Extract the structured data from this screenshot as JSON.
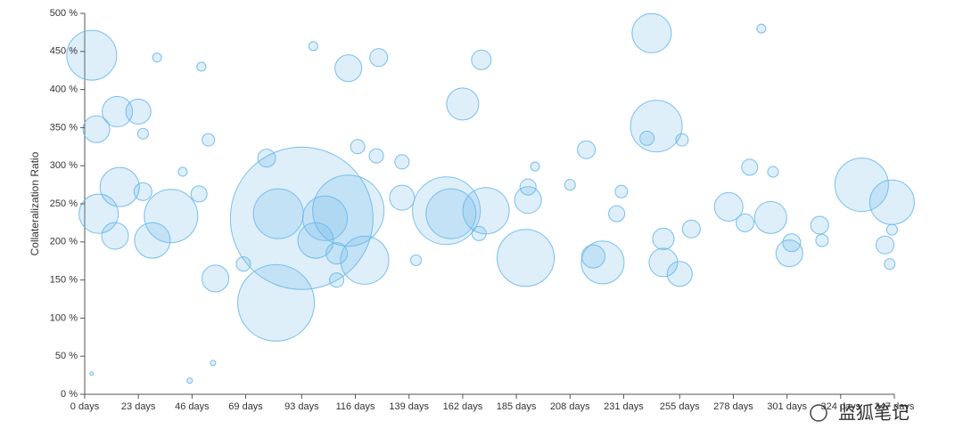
{
  "chart_data": {
    "type": "bubble",
    "y_label": "Collateralization Ratio",
    "watermark": "监狐笔记",
    "color": "#6bb8ea",
    "xlim": [
      0,
      347
    ],
    "ylim": [
      0,
      500
    ],
    "xticks": [
      {
        "value": 0,
        "label": "0 days"
      },
      {
        "value": 23,
        "label": "23 days"
      },
      {
        "value": 46,
        "label": "46 days"
      },
      {
        "value": 69,
        "label": "69 days"
      },
      {
        "value": 93,
        "label": "93 days"
      },
      {
        "value": 116,
        "label": "116 days"
      },
      {
        "value": 139,
        "label": "139 days"
      },
      {
        "value": 162,
        "label": "162 days"
      },
      {
        "value": 185,
        "label": "185 days"
      },
      {
        "value": 208,
        "label": "208 days"
      },
      {
        "value": 231,
        "label": "231 days"
      },
      {
        "value": 255,
        "label": "255 days"
      },
      {
        "value": 278,
        "label": "278 days"
      },
      {
        "value": 301,
        "label": "301 days"
      },
      {
        "value": 324,
        "label": "324 days"
      },
      {
        "value": 347,
        "label": "347 days"
      }
    ],
    "yticks": [
      {
        "value": 0,
        "label": "0 %"
      },
      {
        "value": 50,
        "label": "50 %"
      },
      {
        "value": 100,
        "label": "100 %"
      },
      {
        "value": 150,
        "label": "150 %"
      },
      {
        "value": 200,
        "label": "200 %"
      },
      {
        "value": 250,
        "label": "250 %"
      },
      {
        "value": 300,
        "label": "300 %"
      },
      {
        "value": 350,
        "label": "350 %"
      },
      {
        "value": 400,
        "label": "400 %"
      },
      {
        "value": 450,
        "label": "450 %"
      },
      {
        "value": 500,
        "label": "500 %"
      }
    ],
    "x": [
      3,
      5,
      14,
      23,
      15,
      6,
      13,
      29,
      37,
      56,
      49,
      53,
      93,
      82,
      83,
      99,
      113,
      126,
      98,
      162,
      170,
      243,
      245,
      241,
      256,
      78,
      68,
      113,
      103,
      120,
      108,
      108,
      155,
      157,
      172,
      169,
      189,
      190,
      190,
      215,
      222,
      218,
      228,
      230,
      248,
      255,
      248,
      260,
      276,
      285,
      283,
      294,
      295,
      302,
      303,
      315,
      316,
      333,
      346,
      343,
      346,
      345,
      125,
      136,
      142,
      25,
      42,
      50,
      55,
      45,
      3,
      193,
      208,
      290,
      117,
      31,
      136,
      25
    ],
    "y": [
      445,
      348,
      371,
      371,
      272,
      237,
      208,
      202,
      234,
      152,
      263,
      334,
      231,
      120,
      237,
      202,
      428,
      442,
      457,
      381,
      439,
      474,
      352,
      336,
      334,
      310,
      171,
      241,
      231,
      176,
      185,
      150,
      241,
      237,
      241,
      211,
      179,
      255,
      272,
      321,
      173,
      181,
      237,
      266,
      173,
      158,
      204,
      217,
      246,
      298,
      225,
      232,
      292,
      185,
      199,
      222,
      202,
      275,
      252,
      196,
      216,
      171,
      313,
      305,
      176,
      342,
      292,
      430,
      41,
      18,
      27,
      299,
      275,
      480,
      325,
      442,
      258,
      266
    ],
    "sizes": [
      28,
      15,
      17,
      14,
      22,
      22,
      15,
      20,
      30,
      15,
      9,
      7,
      80,
      43,
      28,
      20,
      15,
      10,
      5,
      18,
      11,
      22,
      29,
      8,
      7,
      10,
      8,
      40,
      25,
      27,
      12,
      8,
      38,
      28,
      26,
      8,
      32,
      15,
      9,
      10,
      24,
      13,
      9,
      7,
      16,
      14,
      12,
      10,
      16,
      9,
      10,
      18,
      6,
      15,
      10,
      10,
      7,
      30,
      25,
      10,
      6,
      6,
      8,
      8,
      6,
      6,
      5,
      5,
      3,
      3,
      2,
      5,
      6,
      5,
      8,
      5,
      14,
      10
    ]
  }
}
